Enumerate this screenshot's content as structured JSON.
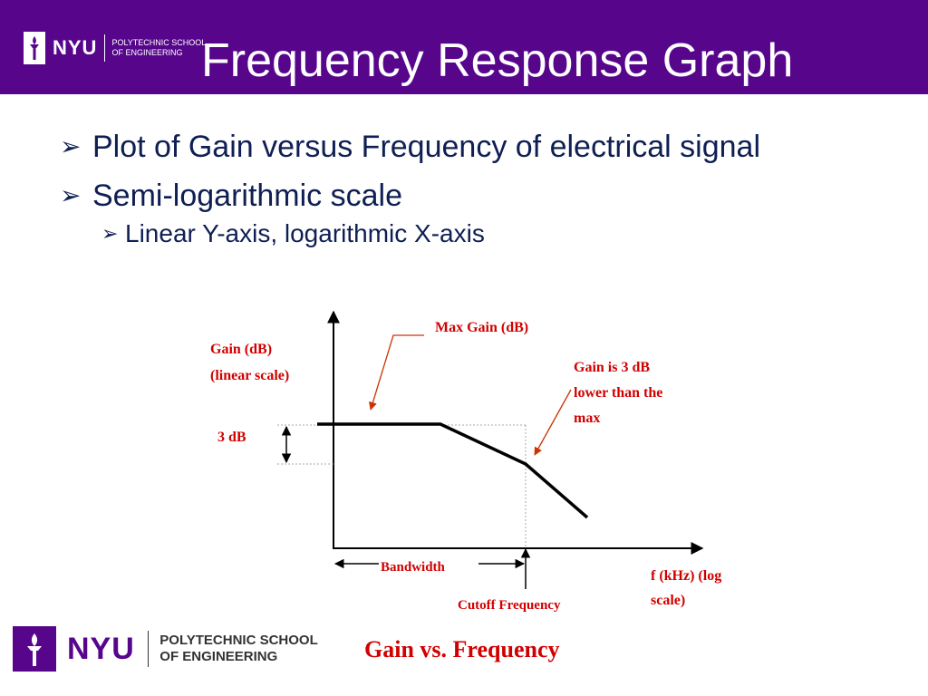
{
  "header": {
    "title": "Frequency Response Graph",
    "logo_text": "NYU",
    "school_line1": "POLYTECHNIC SCHOOL",
    "school_line2": "OF ENGINEERING"
  },
  "bullets": {
    "b1": "Plot of Gain versus Frequency of electrical signal",
    "b2": "Semi-logarithmic scale",
    "b2_sub": "Linear Y-axis, logarithmic X-axis"
  },
  "diagram": {
    "ylabel_line1": "Gain (dB)",
    "ylabel_line2": "(linear scale)",
    "max_gain": "Max Gain (dB)",
    "note_line1": "Gain is 3 dB",
    "note_line2": "lower than the",
    "note_line3": "max",
    "three_db": "3 dB",
    "bandwidth": "Bandwidth",
    "cutoff": "Cutoff Frequency",
    "xlabel_line1": "f  (kHz) (log",
    "xlabel_line2": "scale)"
  },
  "footer": {
    "logo_text": "NYU",
    "school_line1": "POLYTECHNIC SCHOOL",
    "school_line2": "OF ENGINEERING",
    "caption": "Gain vs. Frequency"
  },
  "colors": {
    "header_bg": "#57068c",
    "text_blue": "#0f1f53",
    "annotation_red": "#d10000",
    "arrow_orange": "#cc3300"
  }
}
